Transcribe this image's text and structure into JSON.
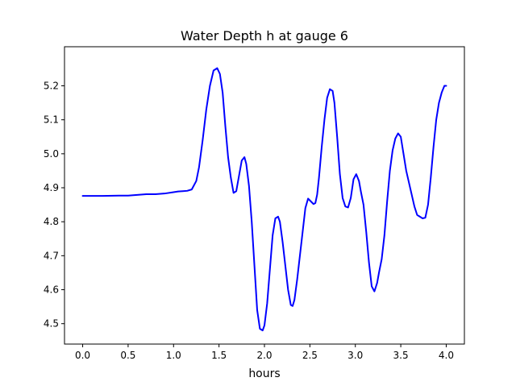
{
  "chart_data": {
    "type": "line",
    "title": "Water Depth h at gauge 6",
    "xlabel": "hours",
    "ylabel": "",
    "xlim": [
      -0.2,
      4.2
    ],
    "ylim": [
      4.44,
      5.315
    ],
    "xticks": [
      0.0,
      0.5,
      1.0,
      1.5,
      2.0,
      2.5,
      3.0,
      3.5,
      4.0
    ],
    "xtick_labels": [
      "0.0",
      "0.5",
      "1.0",
      "1.5",
      "2.0",
      "2.5",
      "3.0",
      "3.5",
      "4.0"
    ],
    "yticks": [
      4.5,
      4.6,
      4.7,
      4.8,
      4.9,
      5.0,
      5.1,
      5.2
    ],
    "ytick_labels": [
      "4.5",
      "4.6",
      "4.7",
      "4.8",
      "4.9",
      "5.0",
      "5.1",
      "5.2"
    ],
    "grid": false,
    "series": [
      {
        "color": "#0000ff",
        "x": [
          0.0,
          0.2,
          0.4,
          0.5,
          0.6,
          0.7,
          0.8,
          0.9,
          1.0,
          1.05,
          1.1,
          1.15,
          1.2,
          1.25,
          1.28,
          1.32,
          1.36,
          1.4,
          1.44,
          1.48,
          1.51,
          1.54,
          1.57,
          1.6,
          1.63,
          1.66,
          1.69,
          1.72,
          1.75,
          1.78,
          1.8,
          1.83,
          1.86,
          1.89,
          1.92,
          1.95,
          1.98,
          2.0,
          2.03,
          2.06,
          2.09,
          2.12,
          2.15,
          2.17,
          2.2,
          2.23,
          2.26,
          2.29,
          2.31,
          2.33,
          2.36,
          2.39,
          2.42,
          2.45,
          2.48,
          2.51,
          2.54,
          2.56,
          2.58,
          2.6,
          2.63,
          2.66,
          2.69,
          2.72,
          2.75,
          2.77,
          2.8,
          2.83,
          2.86,
          2.89,
          2.92,
          2.95,
          2.98,
          3.01,
          3.04,
          3.06,
          3.09,
          3.12,
          3.15,
          3.18,
          3.21,
          3.24,
          3.26,
          3.29,
          3.32,
          3.35,
          3.38,
          3.41,
          3.44,
          3.47,
          3.5,
          3.53,
          3.56,
          3.59,
          3.62,
          3.65,
          3.68,
          3.71,
          3.74,
          3.77,
          3.8,
          3.83,
          3.86,
          3.89,
          3.92,
          3.95,
          3.98,
          4.0
        ],
        "y": [
          4.876,
          4.876,
          4.877,
          4.877,
          4.879,
          4.881,
          4.881,
          4.883,
          4.887,
          4.889,
          4.89,
          4.891,
          4.895,
          4.92,
          4.96,
          5.04,
          5.13,
          5.2,
          5.245,
          5.252,
          5.235,
          5.18,
          5.08,
          4.99,
          4.93,
          4.885,
          4.89,
          4.935,
          4.98,
          4.99,
          4.97,
          4.905,
          4.8,
          4.67,
          4.54,
          4.485,
          4.48,
          4.495,
          4.56,
          4.66,
          4.76,
          4.81,
          4.815,
          4.8,
          4.74,
          4.67,
          4.6,
          4.555,
          4.552,
          4.57,
          4.63,
          4.7,
          4.77,
          4.84,
          4.868,
          4.86,
          4.852,
          4.855,
          4.88,
          4.93,
          5.02,
          5.1,
          5.165,
          5.19,
          5.185,
          5.15,
          5.05,
          4.94,
          4.87,
          4.845,
          4.842,
          4.87,
          4.925,
          4.94,
          4.92,
          4.89,
          4.85,
          4.77,
          4.68,
          4.61,
          4.595,
          4.62,
          4.65,
          4.69,
          4.76,
          4.86,
          4.95,
          5.01,
          5.045,
          5.06,
          5.05,
          5.0,
          4.95,
          4.915,
          4.88,
          4.845,
          4.82,
          4.815,
          4.81,
          4.812,
          4.85,
          4.93,
          5.02,
          5.1,
          5.15,
          5.18,
          5.2,
          5.2
        ]
      }
    ]
  }
}
